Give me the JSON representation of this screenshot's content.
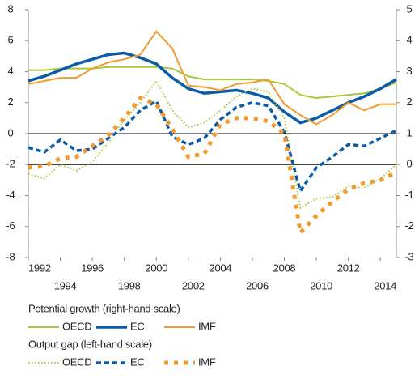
{
  "chart_data": {
    "type": "line",
    "x": [
      1992,
      1993,
      1994,
      1995,
      1996,
      1997,
      1998,
      1999,
      2000,
      2001,
      2002,
      2003,
      2004,
      2005,
      2006,
      2007,
      2008,
      2009,
      2010,
      2011,
      2012,
      2013,
      2014,
      2015
    ],
    "xlim": [
      1992,
      2015
    ],
    "xticks": [
      1992,
      1994,
      1996,
      1998,
      2000,
      2002,
      2004,
      2006,
      2008,
      2010,
      2012,
      2014
    ],
    "ylim": [
      -8,
      8
    ],
    "yticks": [
      -8,
      -6,
      -4,
      -2,
      0,
      2,
      4,
      6,
      8
    ],
    "y2lim": [
      -3,
      5
    ],
    "y2ticks": [
      -3,
      -2,
      -1,
      0,
      1,
      2,
      3,
      4,
      5
    ],
    "legend_titles": [
      "Potential growth (right-hand scale)",
      "Output gap (left-hand scale)"
    ],
    "series": [
      {
        "name": "OECD",
        "color": "#a6c83c",
        "style": "solid",
        "axis": "y2",
        "values": [
          3.05,
          3.05,
          3.1,
          3.1,
          3.1,
          3.15,
          3.15,
          3.15,
          3.15,
          3.1,
          2.85,
          2.75,
          2.75,
          2.75,
          2.75,
          2.7,
          2.6,
          2.25,
          2.15,
          2.2,
          2.25,
          2.3,
          2.45,
          2.65
        ]
      },
      {
        "name": "EC",
        "color": "#0b5ca8",
        "style": "solid-thick",
        "axis": "y2",
        "values": [
          2.7,
          2.85,
          3.05,
          3.25,
          3.4,
          3.55,
          3.6,
          3.45,
          3.25,
          2.8,
          2.45,
          2.3,
          2.35,
          2.4,
          2.3,
          2.15,
          1.7,
          1.35,
          1.5,
          1.75,
          2.0,
          2.2,
          2.45,
          2.75
        ]
      },
      {
        "name": "IMF",
        "color": "#f29a2e",
        "style": "solid",
        "axis": "y2",
        "values": [
          2.6,
          2.7,
          2.8,
          2.8,
          3.1,
          3.3,
          3.4,
          3.55,
          4.3,
          3.75,
          2.55,
          2.5,
          2.4,
          2.6,
          2.65,
          2.75,
          1.95,
          1.6,
          1.3,
          1.6,
          2.0,
          1.75,
          1.95,
          1.95
        ]
      },
      {
        "name": "OECD",
        "color": "#a6c83c",
        "style": "dotted",
        "values": [
          -2.6,
          -2.9,
          -2.0,
          -2.4,
          -1.8,
          -0.6,
          0.9,
          2.0,
          3.4,
          1.5,
          0.4,
          0.7,
          1.5,
          2.4,
          2.9,
          2.7,
          1.0,
          -4.8,
          -4.2,
          -4.1,
          -3.4,
          -3.5,
          -2.9,
          -2.0
        ]
      },
      {
        "name": "EC",
        "color": "#0b5ca8",
        "style": "dashed",
        "values": [
          -0.9,
          -1.2,
          -0.4,
          -1.1,
          -1.0,
          -0.3,
          0.4,
          1.5,
          2.1,
          -0.2,
          -0.7,
          -0.3,
          0.9,
          1.7,
          2.0,
          1.8,
          0.1,
          -3.7,
          -2.2,
          -1.5,
          -0.7,
          -0.8,
          -0.3,
          0.2
        ]
      },
      {
        "name": "IMF",
        "color": "#f29a2e",
        "style": "square-dotted",
        "values": [
          -2.2,
          -2.1,
          -1.6,
          -1.5,
          -0.8,
          -0.1,
          1.0,
          2.3,
          1.9,
          0.3,
          -1.5,
          -1.3,
          0.6,
          1.0,
          1.0,
          0.8,
          0.0,
          -6.4,
          -5.3,
          -4.4,
          -3.6,
          -3.2,
          -3.0,
          -2.5
        ]
      }
    ]
  }
}
